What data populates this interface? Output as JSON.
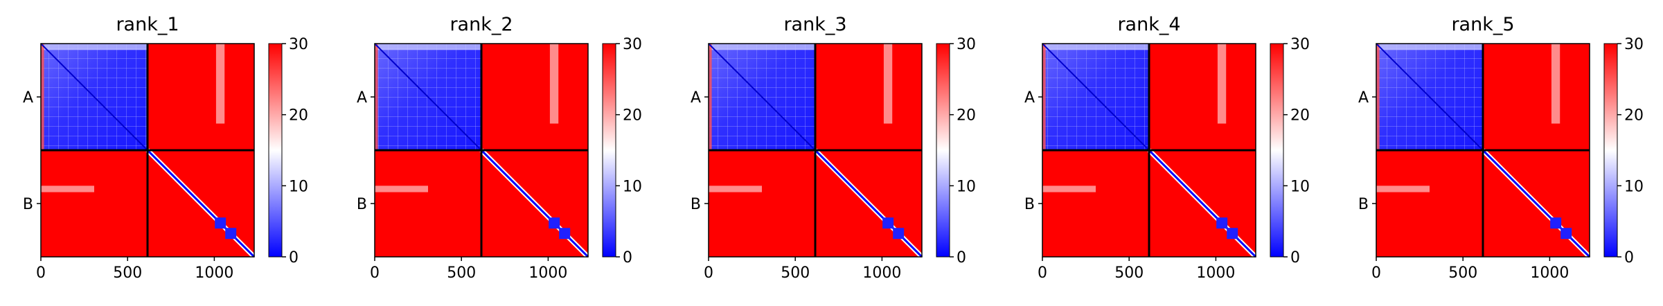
{
  "chart_data": [
    {
      "type": "heatmap",
      "title": "rank_1",
      "xticks": [
        0,
        500,
        1000
      ],
      "xlim": [
        0,
        1230
      ],
      "chain_labels": [
        "A",
        "B"
      ],
      "chain_boundary": 615,
      "colorbar": {
        "min": 0,
        "max": 30,
        "ticks": [
          0,
          10,
          20,
          30
        ],
        "colors": [
          "#0000ff",
          "#ffffff",
          "#ff0000"
        ]
      },
      "grid": false
    },
    {
      "type": "heatmap",
      "title": "rank_2",
      "xticks": [
        0,
        500,
        1000
      ],
      "xlim": [
        0,
        1230
      ],
      "chain_labels": [
        "A",
        "B"
      ],
      "chain_boundary": 615,
      "colorbar": {
        "min": 0,
        "max": 30,
        "ticks": [
          0,
          10,
          20,
          30
        ],
        "colors": [
          "#0000ff",
          "#ffffff",
          "#ff0000"
        ]
      },
      "grid": false
    },
    {
      "type": "heatmap",
      "title": "rank_3",
      "xticks": [
        0,
        500,
        1000
      ],
      "xlim": [
        0,
        1230
      ],
      "chain_labels": [
        "A",
        "B"
      ],
      "chain_boundary": 615,
      "colorbar": {
        "min": 0,
        "max": 30,
        "ticks": [
          0,
          10,
          20,
          30
        ],
        "colors": [
          "#0000ff",
          "#ffffff",
          "#ff0000"
        ]
      },
      "grid": false
    },
    {
      "type": "heatmap",
      "title": "rank_4",
      "xticks": [
        0,
        500,
        1000
      ],
      "xlim": [
        0,
        1230
      ],
      "chain_labels": [
        "A",
        "B"
      ],
      "chain_boundary": 615,
      "colorbar": {
        "min": 0,
        "max": 30,
        "ticks": [
          0,
          10,
          20,
          30
        ],
        "colors": [
          "#0000ff",
          "#ffffff",
          "#ff0000"
        ]
      },
      "grid": false
    },
    {
      "type": "heatmap",
      "title": "rank_5",
      "xticks": [
        0,
        500,
        1000
      ],
      "xlim": [
        0,
        1230
      ],
      "chain_labels": [
        "A",
        "B"
      ],
      "chain_boundary": 615,
      "colorbar": {
        "min": 0,
        "max": 30,
        "ticks": [
          0,
          10,
          20,
          30
        ],
        "colors": [
          "#0000ff",
          "#ffffff",
          "#ff0000"
        ]
      },
      "grid": false
    }
  ]
}
